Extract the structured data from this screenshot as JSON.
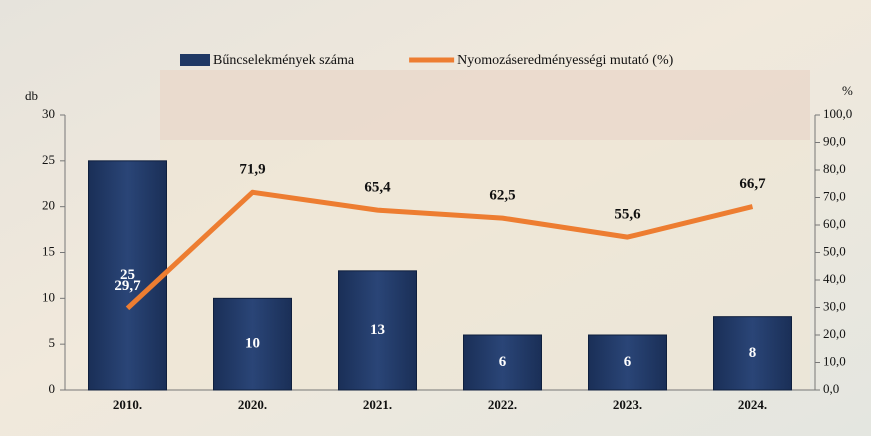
{
  "chart_data": {
    "type": "bar-line",
    "categories": [
      "2010.",
      "2020.",
      "2021.",
      "2022.",
      "2023.",
      "2024."
    ],
    "y_label": "db",
    "y2_label": "%",
    "ylim": [
      0,
      30
    ],
    "yticks": [
      0,
      5,
      10,
      15,
      20,
      25,
      30
    ],
    "y2lim": [
      0,
      100
    ],
    "y2ticks": [
      {
        "value": 0,
        "label": "0,0"
      },
      {
        "value": 10,
        "label": "10,0"
      },
      {
        "value": 20,
        "label": "20,0"
      },
      {
        "value": 30,
        "label": "30,0"
      },
      {
        "value": 40,
        "label": "40,0"
      },
      {
        "value": 50,
        "label": "50,0"
      },
      {
        "value": 60,
        "label": "60,0"
      },
      {
        "value": 70,
        "label": "70,0"
      },
      {
        "value": 80,
        "label": "80,0"
      },
      {
        "value": 90,
        "label": "90,0"
      },
      {
        "value": 100,
        "label": "100,0"
      }
    ],
    "series": [
      {
        "name": "Bűncselekmények száma",
        "type": "bar",
        "color": "#1f3864",
        "values": [
          25,
          10,
          13,
          6,
          6,
          8
        ]
      },
      {
        "name": "Nyomozáseredményességi mutató (%)",
        "type": "line",
        "axis": "y2",
        "color": "#ed7d31",
        "values": [
          29.7,
          71.9,
          65.4,
          62.5,
          55.6,
          66.7
        ],
        "value_labels": [
          "29,7",
          "71,9",
          "65,4",
          "62,5",
          "55,6",
          "66,7"
        ]
      }
    ]
  }
}
